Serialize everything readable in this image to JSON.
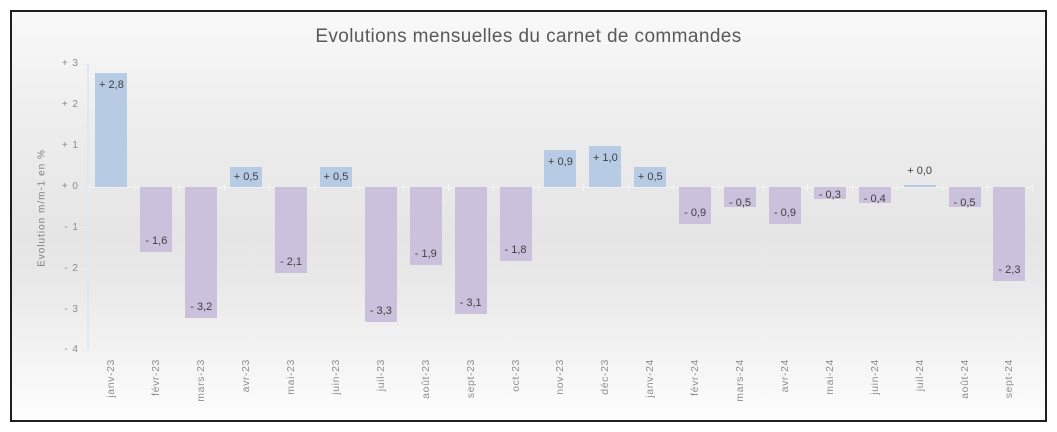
{
  "chart_data": {
    "type": "bar",
    "title": "Evolutions mensuelles du carnet de commandes",
    "ylabel": "Evolution m/m-1 en %",
    "ylim": [
      -4,
      3
    ],
    "grid": false,
    "legend": false,
    "yticks": [
      {
        "value": 3,
        "label": "+ 3"
      },
      {
        "value": 2,
        "label": "+ 2"
      },
      {
        "value": 1,
        "label": "+ 1"
      },
      {
        "value": 0,
        "label": "+ 0"
      },
      {
        "value": -1,
        "label": "- 1"
      },
      {
        "value": -2,
        "label": "- 2"
      },
      {
        "value": -3,
        "label": "- 3"
      },
      {
        "value": -4,
        "label": "- 4"
      }
    ],
    "categories": [
      "janv-23",
      "févr-23",
      "mars-23",
      "avr-23",
      "mai-23",
      "juin-23",
      "juil-23",
      "août-23",
      "sept-23",
      "oct-23",
      "nov-23",
      "déc-23",
      "janv-24",
      "févr-24",
      "mars-24",
      "avr-24",
      "mai-24",
      "juin-24",
      "juil-24",
      "août-24",
      "sept-24"
    ],
    "values": [
      2.8,
      -1.6,
      -3.2,
      0.5,
      -2.1,
      0.5,
      -3.3,
      -1.9,
      -3.1,
      -1.8,
      0.9,
      1.0,
      0.5,
      -0.9,
      -0.5,
      -0.9,
      -0.3,
      -0.4,
      0.0,
      -0.5,
      -2.3
    ],
    "bar_labels": [
      "+ 2,8",
      "- 1,6",
      "- 3,2",
      "+ 0,5",
      "- 2,1",
      "+ 0,5",
      "- 3,3",
      "- 1,9",
      "- 3,1",
      "- 1,8",
      "+ 0,9",
      "+ 1,0",
      "+ 0,5",
      "- 0,9",
      "- 0,5",
      "- 0,9",
      "- 0,3",
      "- 0,4",
      "+ 0,0",
      "- 0,5",
      "- 2,3"
    ],
    "colors": {
      "positive_bar": "#b7cce4",
      "negative_bar": "#ccc1dd",
      "title_text": "#595959",
      "axis_text": "#8c8c8c",
      "data_label_text": "#3f3f3f",
      "frame_border": "#1f1f1f"
    }
  }
}
